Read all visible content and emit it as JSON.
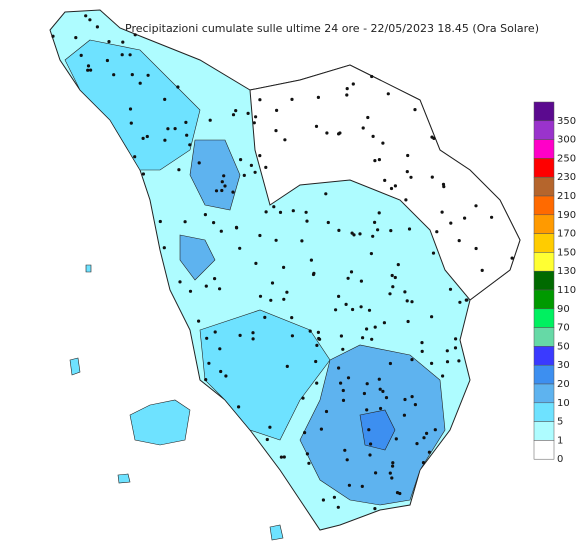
{
  "title": "Precipitazioni cumulate sulle ultime 24 ore - 22/05/2023 18.45 (Ora Solare)",
  "legend": [
    {
      "label": "350",
      "color": "#5b0a8f"
    },
    {
      "label": "300",
      "color": "#9a33cc"
    },
    {
      "label": "250",
      "color": "#ff00c8"
    },
    {
      "label": "230",
      "color": "#ff0000"
    },
    {
      "label": "210",
      "color": "#b5652c"
    },
    {
      "label": "190",
      "color": "#ff6a00"
    },
    {
      "label": "170",
      "color": "#ff9a00"
    },
    {
      "label": "150",
      "color": "#ffcc00"
    },
    {
      "label": "130",
      "color": "#ffff33"
    },
    {
      "label": "110",
      "color": "#006a00"
    },
    {
      "label": "90",
      "color": "#009a00"
    },
    {
      "label": "70",
      "color": "#00f060"
    },
    {
      "label": "50",
      "color": "#66d9a6"
    },
    {
      "label": "30",
      "color": "#3a3aff"
    },
    {
      "label": "20",
      "color": "#3d8ff0"
    },
    {
      "label": "10",
      "color": "#5eb3ef"
    },
    {
      "label": "5",
      "color": "#6ee2ff"
    },
    {
      "label": "1",
      "color": "#aefcff"
    },
    {
      "label": "0",
      "color": "#ffffff"
    }
  ]
}
